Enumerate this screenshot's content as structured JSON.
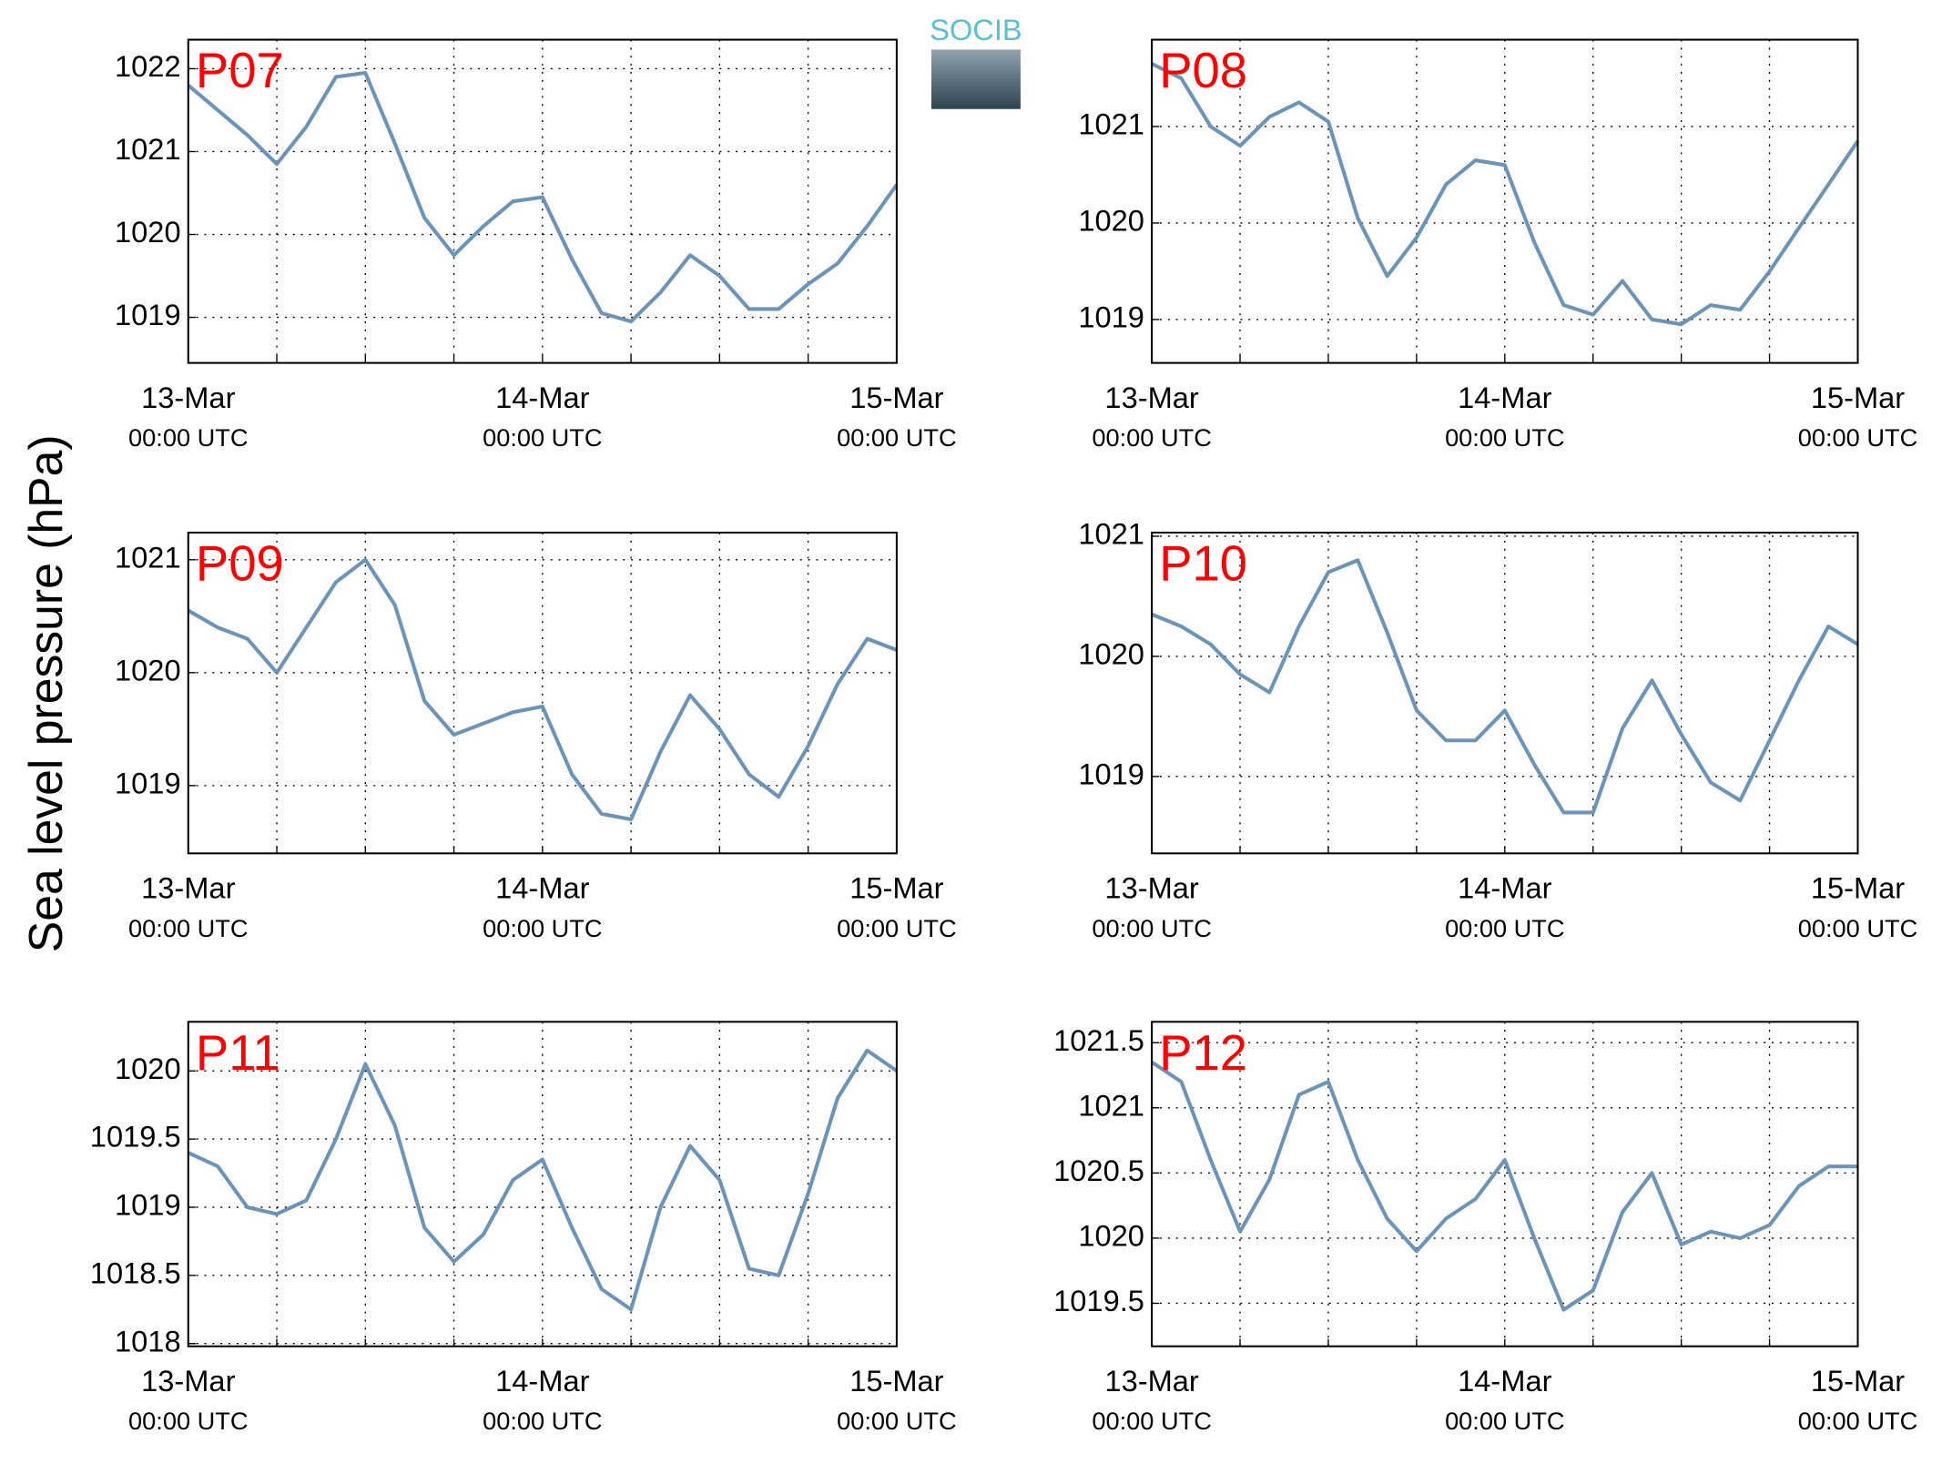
{
  "ylabel": "Sea level pressure (hPa)",
  "logo": "SOCIB",
  "chart_data": [
    {
      "type": "line",
      "title": "P07",
      "color": "#6b94b8",
      "grid": true,
      "x": [
        0,
        2,
        4,
        6,
        8,
        10,
        12,
        14,
        16,
        18,
        20,
        22,
        24,
        26,
        28,
        30,
        32,
        34,
        36,
        38,
        40,
        42,
        44,
        46,
        48
      ],
      "values": [
        1021.8,
        1021.5,
        1021.2,
        1020.85,
        1021.3,
        1021.9,
        1021.95,
        1021.1,
        1020.2,
        1019.75,
        1020.1,
        1020.4,
        1020.45,
        1019.7,
        1019.05,
        1018.95,
        1019.3,
        1019.75,
        1019.5,
        1019.1,
        1019.1,
        1019.4,
        1019.65,
        1020.1,
        1020.6
      ],
      "xlim": [
        0,
        48
      ],
      "xticks": [
        {
          "value": 0,
          "label": "13-Mar",
          "sublabel": "00:00 UTC"
        },
        {
          "value": 24,
          "label": "14-Mar",
          "sublabel": "00:00 UTC"
        },
        {
          "value": 48,
          "label": "15-Mar",
          "sublabel": "00:00 UTC"
        }
      ],
      "xminor": [
        6,
        12,
        18,
        30,
        36,
        42
      ],
      "ylim": [
        1018.45,
        1022.35
      ],
      "yticks": [
        1019,
        1020,
        1021,
        1022
      ]
    },
    {
      "type": "line",
      "title": "P08",
      "color": "#6b94b8",
      "grid": true,
      "x": [
        0,
        2,
        4,
        6,
        8,
        10,
        12,
        14,
        16,
        18,
        20,
        22,
        24,
        26,
        28,
        30,
        32,
        34,
        36,
        38,
        40,
        42,
        44,
        46,
        48
      ],
      "values": [
        1021.65,
        1021.5,
        1021.0,
        1020.8,
        1021.1,
        1021.25,
        1021.05,
        1020.05,
        1019.45,
        1019.85,
        1020.4,
        1020.65,
        1020.6,
        1019.8,
        1019.15,
        1019.05,
        1019.4,
        1019.0,
        1018.95,
        1019.15,
        1019.1,
        1019.5,
        1019.95,
        1020.4,
        1020.85
      ],
      "xlim": [
        0,
        48
      ],
      "xticks": [
        {
          "value": 0,
          "label": "13-Mar",
          "sublabel": "00:00 UTC"
        },
        {
          "value": 24,
          "label": "14-Mar",
          "sublabel": "00:00 UTC"
        },
        {
          "value": 48,
          "label": "15-Mar",
          "sublabel": "00:00 UTC"
        }
      ],
      "xminor": [
        6,
        12,
        18,
        30,
        36,
        42
      ],
      "ylim": [
        1018.55,
        1021.9
      ],
      "yticks": [
        1019,
        1020,
        1021
      ]
    },
    {
      "type": "line",
      "title": "P09",
      "color": "#6b94b8",
      "grid": true,
      "x": [
        0,
        2,
        4,
        6,
        8,
        10,
        12,
        14,
        16,
        18,
        20,
        22,
        24,
        26,
        28,
        30,
        32,
        34,
        36,
        38,
        40,
        42,
        44,
        46,
        48
      ],
      "values": [
        1020.55,
        1020.4,
        1020.3,
        1020.0,
        1020.4,
        1020.8,
        1021.0,
        1020.6,
        1019.75,
        1019.45,
        1019.55,
        1019.65,
        1019.7,
        1019.1,
        1018.75,
        1018.7,
        1019.3,
        1019.8,
        1019.5,
        1019.1,
        1018.9,
        1019.35,
        1019.9,
        1020.3,
        1020.2
      ],
      "xlim": [
        0,
        48
      ],
      "xticks": [
        {
          "value": 0,
          "label": "13-Mar",
          "sublabel": "00:00 UTC"
        },
        {
          "value": 24,
          "label": "14-Mar",
          "sublabel": "00:00 UTC"
        },
        {
          "value": 48,
          "label": "15-Mar",
          "sublabel": "00:00 UTC"
        }
      ],
      "xminor": [
        6,
        12,
        18,
        30,
        36,
        42
      ],
      "ylim": [
        1018.4,
        1021.24
      ],
      "yticks": [
        1019,
        1020,
        1021
      ]
    },
    {
      "type": "line",
      "title": "P10",
      "color": "#6b94b8",
      "grid": true,
      "x": [
        0,
        2,
        4,
        6,
        8,
        10,
        12,
        14,
        16,
        18,
        20,
        22,
        24,
        26,
        28,
        30,
        32,
        34,
        36,
        38,
        40,
        42,
        44,
        46,
        48
      ],
      "values": [
        1020.35,
        1020.25,
        1020.1,
        1019.85,
        1019.7,
        1020.25,
        1020.7,
        1020.8,
        1020.2,
        1019.55,
        1019.3,
        1019.3,
        1019.55,
        1019.1,
        1018.7,
        1018.7,
        1019.4,
        1019.8,
        1019.35,
        1018.95,
        1018.8,
        1019.3,
        1019.8,
        1020.25,
        1020.1
      ],
      "xlim": [
        0,
        48
      ],
      "xticks": [
        {
          "value": 0,
          "label": "13-Mar",
          "sublabel": "00:00 UTC"
        },
        {
          "value": 24,
          "label": "14-Mar",
          "sublabel": "00:00 UTC"
        },
        {
          "value": 48,
          "label": "15-Mar",
          "sublabel": "00:00 UTC"
        }
      ],
      "xminor": [
        6,
        12,
        18,
        30,
        36,
        42
      ],
      "ylim": [
        1018.36,
        1021.03
      ],
      "yticks": [
        1019,
        1020,
        1021
      ]
    },
    {
      "type": "line",
      "title": "P11",
      "color": "#6b94b8",
      "grid": true,
      "x": [
        0,
        2,
        4,
        6,
        8,
        10,
        12,
        14,
        16,
        18,
        20,
        22,
        24,
        26,
        28,
        30,
        32,
        34,
        36,
        38,
        40,
        42,
        44,
        46,
        48
      ],
      "values": [
        1019.4,
        1019.3,
        1019.0,
        1018.95,
        1019.05,
        1019.5,
        1020.05,
        1019.6,
        1018.85,
        1018.6,
        1018.8,
        1019.2,
        1019.35,
        1018.85,
        1018.4,
        1018.25,
        1019.0,
        1019.45,
        1019.2,
        1018.55,
        1018.5,
        1019.1,
        1019.8,
        1020.15,
        1020.0
      ],
      "xlim": [
        0,
        48
      ],
      "xticks": [
        {
          "value": 0,
          "label": "13-Mar",
          "sublabel": "00:00 UTC"
        },
        {
          "value": 24,
          "label": "14-Mar",
          "sublabel": "00:00 UTC"
        },
        {
          "value": 48,
          "label": "15-Mar",
          "sublabel": "00:00 UTC"
        }
      ],
      "xminor": [
        6,
        12,
        18,
        30,
        36,
        42
      ],
      "ylim": [
        1017.98,
        1020.36
      ],
      "yticks": [
        1018,
        1018.5,
        1019,
        1019.5,
        1020
      ]
    },
    {
      "type": "line",
      "title": "P12",
      "color": "#6b94b8",
      "grid": true,
      "x": [
        0,
        2,
        4,
        6,
        8,
        10,
        12,
        14,
        16,
        18,
        20,
        22,
        24,
        26,
        28,
        30,
        32,
        34,
        36,
        38,
        40,
        42,
        44,
        46,
        48
      ],
      "values": [
        1021.35,
        1021.2,
        1020.6,
        1020.05,
        1020.45,
        1021.1,
        1021.2,
        1020.6,
        1020.15,
        1019.9,
        1020.15,
        1020.3,
        1020.6,
        1020.0,
        1019.45,
        1019.6,
        1020.2,
        1020.5,
        1019.95,
        1020.05,
        1020.0,
        1020.1,
        1020.4,
        1020.55,
        1020.55
      ],
      "xlim": [
        0,
        48
      ],
      "xticks": [
        {
          "value": 0,
          "label": "13-Mar",
          "sublabel": "00:00 UTC"
        },
        {
          "value": 24,
          "label": "14-Mar",
          "sublabel": "00:00 UTC"
        },
        {
          "value": 48,
          "label": "15-Mar",
          "sublabel": "00:00 UTC"
        }
      ],
      "xminor": [
        6,
        12,
        18,
        30,
        36,
        42
      ],
      "ylim": [
        1019.17,
        1021.66
      ],
      "yticks": [
        1019.5,
        1020,
        1020.5,
        1021,
        1021.5
      ]
    }
  ]
}
